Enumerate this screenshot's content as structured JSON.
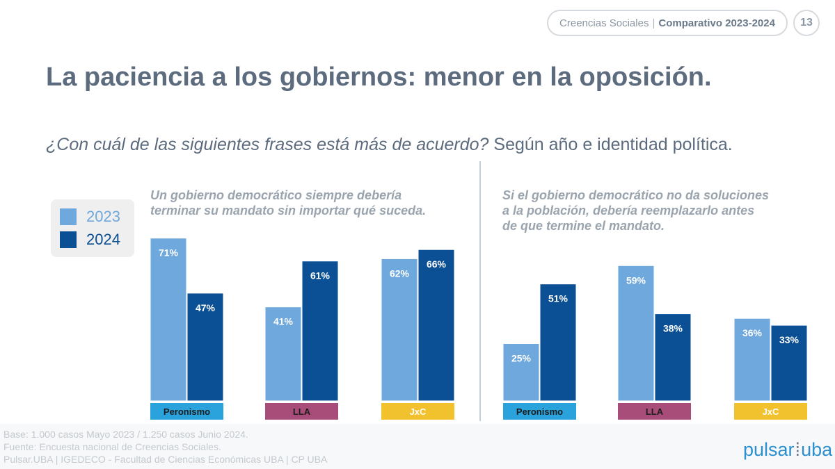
{
  "header": {
    "section": "Creencias Sociales",
    "separator": "|",
    "comparison": "Comparativo 2023-2024",
    "page_number": "13"
  },
  "title": "La paciencia a los gobiernos: menor en la oposición.",
  "subtitle": {
    "question": "¿Con cuál de las siguientes frases está más de acuerdo?",
    "detail": "Según año e identidad política."
  },
  "legend": [
    {
      "label": "2023",
      "color": "#6fa8dc"
    },
    {
      "label": "2024",
      "color": "#0b4f95"
    }
  ],
  "panels": [
    {
      "statement": [
        "Un gobierno democrático siempre debería",
        "terminar su mandato sin importar qué suceda."
      ]
    },
    {
      "statement": [
        "Si el gobierno democrático no da soluciones",
        "a la población, debería reemplazarlo antes",
        "de que termine el mandato."
      ]
    }
  ],
  "chart_data": [
    {
      "type": "bar",
      "title": "Un gobierno democrático siempre debería terminar su mandato sin importar qué suceda.",
      "categories": [
        "Peronismo",
        "LLA",
        "JxC"
      ],
      "category_colors": [
        "#2aa3dc",
        "#a84d7a",
        "#f2c12e"
      ],
      "series": [
        {
          "name": "2023",
          "values": [
            71,
            41,
            62
          ],
          "color": "#6fa8dc"
        },
        {
          "name": "2024",
          "values": [
            47,
            61,
            66
          ],
          "color": "#0b4f95"
        }
      ],
      "value_suffix": "%",
      "ylim": [
        0,
        100
      ],
      "grid": false
    },
    {
      "type": "bar",
      "title": "Si el gobierno democrático no da soluciones a la población, debería reemplazarlo antes de que termine el mandato.",
      "categories": [
        "Peronismo",
        "LLA",
        "JxC"
      ],
      "category_colors": [
        "#2aa3dc",
        "#a84d7a",
        "#f2c12e"
      ],
      "series": [
        {
          "name": "2023",
          "values": [
            25,
            59,
            36
          ],
          "color": "#6fa8dc"
        },
        {
          "name": "2024",
          "values": [
            51,
            38,
            33
          ],
          "color": "#0b4f95"
        }
      ],
      "value_suffix": "%",
      "ylim": [
        0,
        100
      ],
      "grid": false
    }
  ],
  "footnote": [
    "Base: 1.000 casos Mayo 2023 / 1.250 casos  Junio 2024.",
    "Fuente: Encuesta nacional de Creencias Sociales.",
    "Pulsar.UBA | IGEDECO - Facultad de Ciencias Económicas UBA | CP UBA"
  ],
  "logo": {
    "left": "pulsar",
    "right": "uba"
  }
}
